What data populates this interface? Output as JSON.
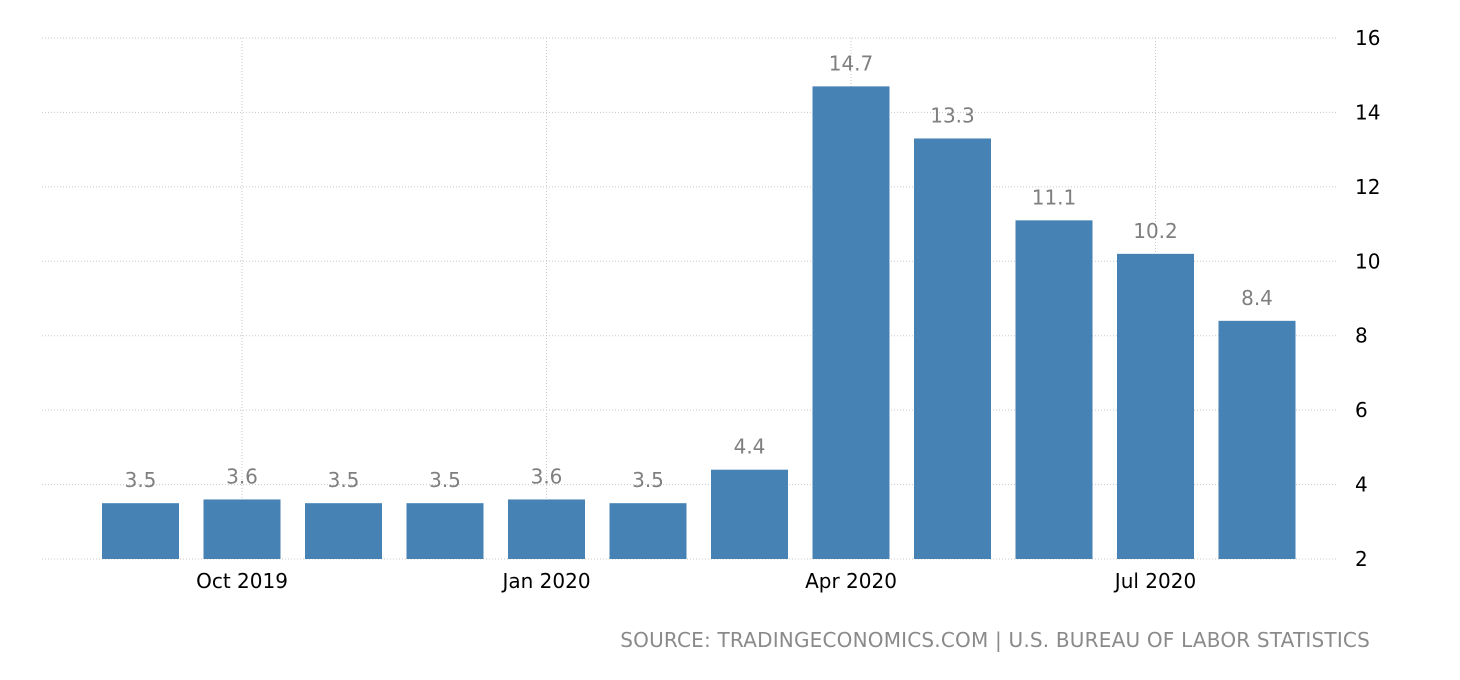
{
  "chart_data": {
    "type": "bar",
    "categories": [
      "Sep 2019",
      "Oct 2019",
      "Nov 2019",
      "Dec 2019",
      "Jan 2020",
      "Feb 2020",
      "Mar 2020",
      "Apr 2020",
      "May 2020",
      "Jun 2020",
      "Jul 2020",
      "Aug 2020"
    ],
    "values": [
      3.5,
      3.6,
      3.5,
      3.5,
      3.6,
      3.5,
      4.4,
      14.7,
      13.3,
      11.1,
      10.2,
      8.4
    ],
    "value_labels": [
      "3.5",
      "3.6",
      "3.5",
      "3.5",
      "3.6",
      "3.5",
      "4.4",
      "14.7",
      "13.3",
      "11.1",
      "10.2",
      "8.4"
    ],
    "x_tick_labels": [
      {
        "category": "Oct 2019",
        "label": "Oct 2019"
      },
      {
        "category": "Jan 2020",
        "label": "Jan 2020"
      },
      {
        "category": "Apr 2020",
        "label": "Apr 2020"
      },
      {
        "category": "Jul 2020",
        "label": "Jul 2020"
      }
    ],
    "y_ticks": [
      2,
      4,
      6,
      8,
      10,
      12,
      14,
      16
    ],
    "ylim": [
      2,
      16
    ],
    "y_axis_side": "right",
    "grid": true,
    "bar_color": "#4682b4",
    "label_color": "#7f7f7f",
    "title": "",
    "xlabel": "",
    "ylabel": ""
  },
  "source_text": "SOURCE: TRADINGECONOMICS.COM | U.S. BUREAU OF LABOR STATISTICS"
}
